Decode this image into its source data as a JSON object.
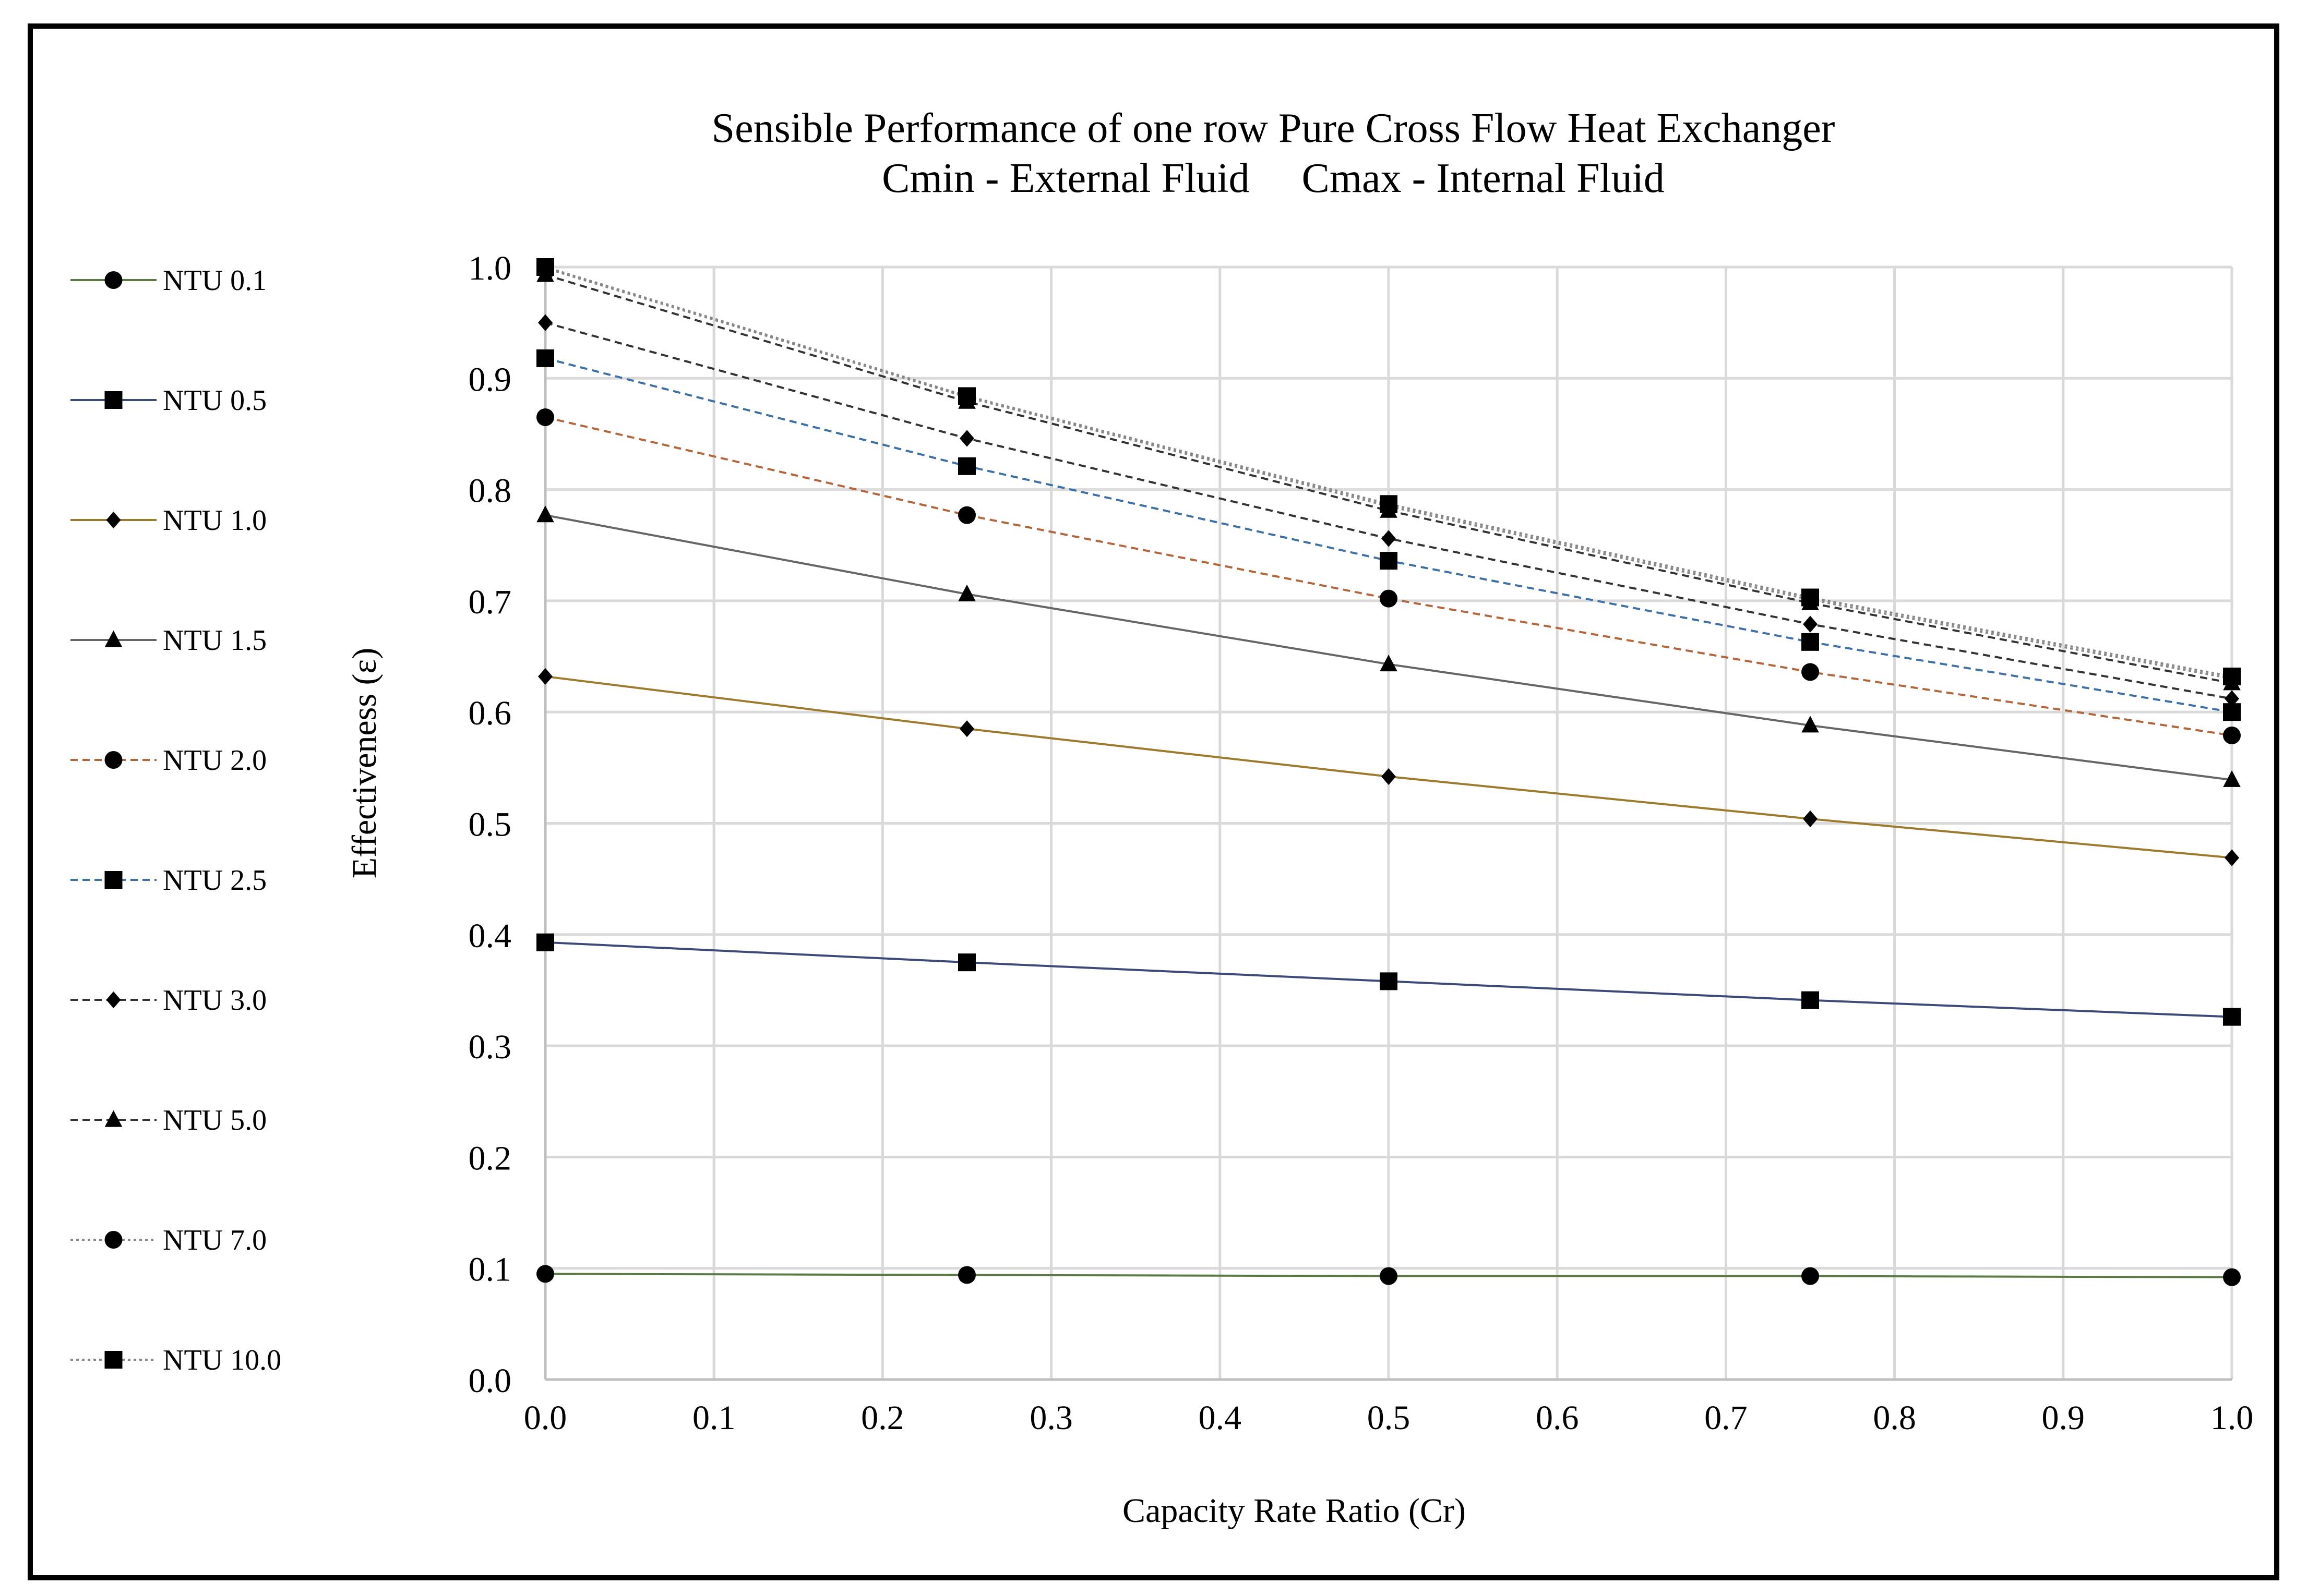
{
  "chart_data": {
    "type": "line",
    "title": "Sensible Performance of one row Pure Cross Flow Heat Exchanger",
    "subtitle": "Cmin - External Fluid     Cmax - Internal Fluid",
    "xlabel": "Capacity Rate Ratio (Cr)",
    "ylabel": "Effectiveness (ε)",
    "xlim": [
      0,
      1
    ],
    "ylim": [
      0,
      1
    ],
    "xticks": [
      "0.0",
      "0.1",
      "0.2",
      "0.3",
      "0.4",
      "0.5",
      "0.6",
      "0.7",
      "0.8",
      "0.9",
      "1.0"
    ],
    "yticks": [
      "0.0",
      "0.1",
      "0.2",
      "0.3",
      "0.4",
      "0.5",
      "0.6",
      "0.7",
      "0.8",
      "0.9",
      "1.0"
    ],
    "grid": true,
    "legend_position": "left",
    "x": [
      0,
      0.25,
      0.5,
      0.75,
      1.0
    ],
    "series": [
      {
        "name": "NTU 0.1",
        "values": [
          0.095,
          0.094,
          0.093,
          0.093,
          0.092
        ],
        "marker": "circle",
        "dash": "solid",
        "color": "#5a7a44"
      },
      {
        "name": "NTU 0.5",
        "values": [
          0.393,
          0.375,
          0.358,
          0.341,
          0.326
        ],
        "marker": "square",
        "dash": "solid",
        "color": "#3b4a78"
      },
      {
        "name": "NTU 1.0",
        "values": [
          0.632,
          0.585,
          0.542,
          0.504,
          0.469
        ],
        "marker": "diamond",
        "dash": "solid",
        "color": "#9c7a2e"
      },
      {
        "name": "NTU 1.5",
        "values": [
          0.777,
          0.706,
          0.643,
          0.588,
          0.539
        ],
        "marker": "triangle",
        "dash": "solid",
        "color": "#666666"
      },
      {
        "name": "NTU 2.0",
        "values": [
          0.865,
          0.777,
          0.702,
          0.636,
          0.579
        ],
        "marker": "circle",
        "dash": "dashed",
        "color": "#b5653a"
      },
      {
        "name": "NTU 2.5",
        "values": [
          0.918,
          0.821,
          0.736,
          0.663,
          0.6
        ],
        "marker": "square",
        "dash": "dashed",
        "color": "#3d6fa8"
      },
      {
        "name": "NTU 3.0",
        "values": [
          0.95,
          0.846,
          0.756,
          0.679,
          0.612
        ],
        "marker": "diamond",
        "dash": "dashed",
        "color": "#333333"
      },
      {
        "name": "NTU 5.0",
        "values": [
          0.993,
          0.879,
          0.781,
          0.698,
          0.626
        ],
        "marker": "triangle",
        "dash": "dashed",
        "color": "#333333"
      },
      {
        "name": "NTU 7.0",
        "values": [
          0.999,
          0.883,
          0.785,
          0.701,
          0.63
        ],
        "marker": "circle",
        "dash": "dotted",
        "color": "#888888"
      },
      {
        "name": "NTU 10.0",
        "values": [
          1.0,
          0.884,
          0.787,
          0.703,
          0.632
        ],
        "marker": "square",
        "dash": "dotted",
        "color": "#888888"
      }
    ]
  }
}
